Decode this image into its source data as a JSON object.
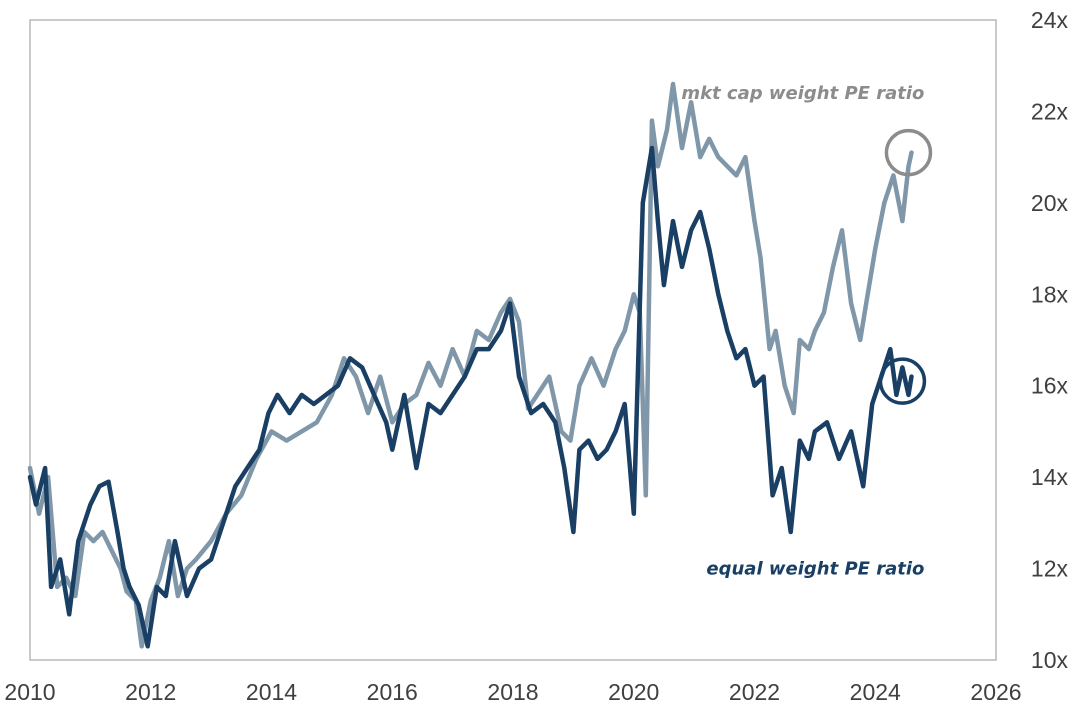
{
  "chart_data": {
    "type": "line",
    "title": "",
    "xlabel": "",
    "ylabel": "",
    "xlim": [
      2010,
      2026
    ],
    "ylim": [
      10,
      24
    ],
    "grid": false,
    "x_ticks": [
      {
        "value": 2010,
        "label": "2010"
      },
      {
        "value": 2012,
        "label": "2012"
      },
      {
        "value": 2014,
        "label": "2014"
      },
      {
        "value": 2016,
        "label": "2016"
      },
      {
        "value": 2018,
        "label": "2018"
      },
      {
        "value": 2020,
        "label": "2020"
      },
      {
        "value": 2022,
        "label": "2022"
      },
      {
        "value": 2024,
        "label": "2024"
      },
      {
        "value": 2026,
        "label": "2026"
      }
    ],
    "y_ticks": [
      {
        "value": 10,
        "label": "10x"
      },
      {
        "value": 12,
        "label": "12x"
      },
      {
        "value": 14,
        "label": "14x"
      },
      {
        "value": 16,
        "label": "16x"
      },
      {
        "value": 18,
        "label": "18x"
      },
      {
        "value": 20,
        "label": "20x"
      },
      {
        "value": 22,
        "label": "22x"
      },
      {
        "value": 24,
        "label": "24x"
      }
    ],
    "series": [
      {
        "name": "mkt cap weight PE ratio",
        "color": "#7f97a9",
        "x": [
          2010.0,
          2010.15,
          2010.3,
          2010.45,
          2010.6,
          2010.75,
          2010.9,
          2011.05,
          2011.2,
          2011.35,
          2011.5,
          2011.6,
          2011.75,
          2011.85,
          2012.0,
          2012.15,
          2012.3,
          2012.45,
          2012.6,
          2012.75,
          2013.0,
          2013.25,
          2013.5,
          2013.75,
          2014.0,
          2014.25,
          2014.5,
          2014.75,
          2015.0,
          2015.2,
          2015.4,
          2015.6,
          2015.8,
          2016.0,
          2016.2,
          2016.4,
          2016.6,
          2016.8,
          2017.0,
          2017.2,
          2017.4,
          2017.6,
          2017.8,
          2017.95,
          2018.1,
          2018.25,
          2018.4,
          2018.6,
          2018.8,
          2018.95,
          2019.1,
          2019.3,
          2019.5,
          2019.7,
          2019.85,
          2020.0,
          2020.1,
          2020.2,
          2020.3,
          2020.4,
          2020.55,
          2020.65,
          2020.8,
          2020.95,
          2021.1,
          2021.25,
          2021.4,
          2021.55,
          2021.7,
          2021.85,
          2022.0,
          2022.1,
          2022.25,
          2022.35,
          2022.5,
          2022.65,
          2022.75,
          2022.9,
          2023.0,
          2023.15,
          2023.3,
          2023.45,
          2023.6,
          2023.75,
          2023.85,
          2024.0,
          2024.15,
          2024.3,
          2024.45,
          2024.55,
          2024.6
        ],
        "y": [
          14.2,
          13.2,
          14.0,
          11.6,
          11.8,
          11.4,
          12.8,
          12.6,
          12.8,
          12.4,
          12.0,
          11.5,
          11.3,
          10.3,
          11.3,
          11.8,
          12.6,
          11.4,
          12.0,
          12.2,
          12.6,
          13.2,
          13.6,
          14.4,
          15.0,
          14.8,
          15.0,
          15.2,
          15.8,
          16.6,
          16.2,
          15.4,
          16.2,
          15.2,
          15.6,
          15.8,
          16.5,
          16.0,
          16.8,
          16.2,
          17.2,
          17.0,
          17.6,
          17.9,
          17.4,
          15.5,
          15.8,
          16.2,
          15.0,
          14.8,
          16.0,
          16.6,
          16.0,
          16.8,
          17.2,
          18.0,
          17.6,
          13.6,
          21.8,
          20.8,
          21.6,
          22.6,
          21.2,
          22.2,
          21.0,
          21.4,
          21.0,
          20.8,
          20.6,
          21.0,
          19.6,
          18.8,
          16.8,
          17.2,
          16.0,
          15.4,
          17.0,
          16.8,
          17.2,
          17.6,
          18.6,
          19.4,
          17.8,
          17.0,
          17.8,
          19.0,
          20.0,
          20.6,
          19.6,
          20.8,
          21.1
        ]
      },
      {
        "name": "equal weight PE ratio",
        "color": "#1a3f64",
        "x": [
          2010.0,
          2010.1,
          2010.25,
          2010.35,
          2010.5,
          2010.65,
          2010.8,
          2010.9,
          2011.0,
          2011.15,
          2011.3,
          2011.45,
          2011.55,
          2011.65,
          2011.8,
          2011.95,
          2012.1,
          2012.25,
          2012.4,
          2012.6,
          2012.8,
          2013.0,
          2013.2,
          2013.4,
          2013.6,
          2013.8,
          2013.95,
          2014.1,
          2014.3,
          2014.5,
          2014.7,
          2014.9,
          2015.1,
          2015.3,
          2015.5,
          2015.7,
          2015.9,
          2016.0,
          2016.2,
          2016.4,
          2016.6,
          2016.8,
          2017.0,
          2017.2,
          2017.4,
          2017.6,
          2017.8,
          2017.95,
          2018.1,
          2018.3,
          2018.5,
          2018.7,
          2018.85,
          2019.0,
          2019.1,
          2019.25,
          2019.4,
          2019.55,
          2019.7,
          2019.85,
          2020.0,
          2020.15,
          2020.3,
          2020.4,
          2020.5,
          2020.65,
          2020.8,
          2020.95,
          2021.1,
          2021.25,
          2021.4,
          2021.55,
          2021.7,
          2021.85,
          2022.0,
          2022.15,
          2022.3,
          2022.45,
          2022.6,
          2022.75,
          2022.9,
          2023.0,
          2023.2,
          2023.4,
          2023.6,
          2023.8,
          2023.95,
          2024.1,
          2024.25,
          2024.35,
          2024.45,
          2024.55,
          2024.6
        ],
        "y": [
          14.0,
          13.4,
          14.2,
          11.6,
          12.2,
          11.0,
          12.6,
          13.0,
          13.4,
          13.8,
          13.9,
          12.8,
          12.0,
          11.6,
          11.2,
          10.3,
          11.6,
          11.4,
          12.6,
          11.4,
          12.0,
          12.2,
          13.0,
          13.8,
          14.2,
          14.6,
          15.4,
          15.8,
          15.4,
          15.8,
          15.6,
          15.8,
          16.0,
          16.6,
          16.4,
          15.8,
          15.2,
          14.6,
          15.8,
          14.2,
          15.6,
          15.4,
          15.8,
          16.2,
          16.8,
          16.8,
          17.2,
          17.8,
          16.2,
          15.4,
          15.6,
          15.2,
          14.2,
          12.8,
          14.6,
          14.8,
          14.4,
          14.6,
          15.0,
          15.6,
          13.2,
          20.0,
          21.2,
          19.6,
          18.2,
          19.6,
          18.6,
          19.4,
          19.8,
          19.0,
          18.0,
          17.2,
          16.6,
          16.8,
          16.0,
          16.2,
          13.6,
          14.2,
          12.8,
          14.8,
          14.4,
          15.0,
          15.2,
          14.4,
          15.0,
          13.8,
          15.6,
          16.2,
          16.8,
          15.8,
          16.4,
          15.8,
          16.2
        ]
      }
    ],
    "annotations": [
      {
        "text": "mkt cap weight PE ratio",
        "series": 0,
        "x": 2024.4,
        "y": 22.4,
        "color": "#8c8c8c"
      },
      {
        "text": "equal weight PE ratio",
        "series": 1,
        "x": 2024.4,
        "y": 12.0,
        "color": "#1a3f64"
      }
    ],
    "highlights": [
      {
        "series": 0,
        "x": 2024.55,
        "y": 21.1,
        "color": "#8c8c8c"
      },
      {
        "series": 1,
        "x": 2024.45,
        "y": 16.1,
        "color": "#1a3f64"
      }
    ]
  }
}
